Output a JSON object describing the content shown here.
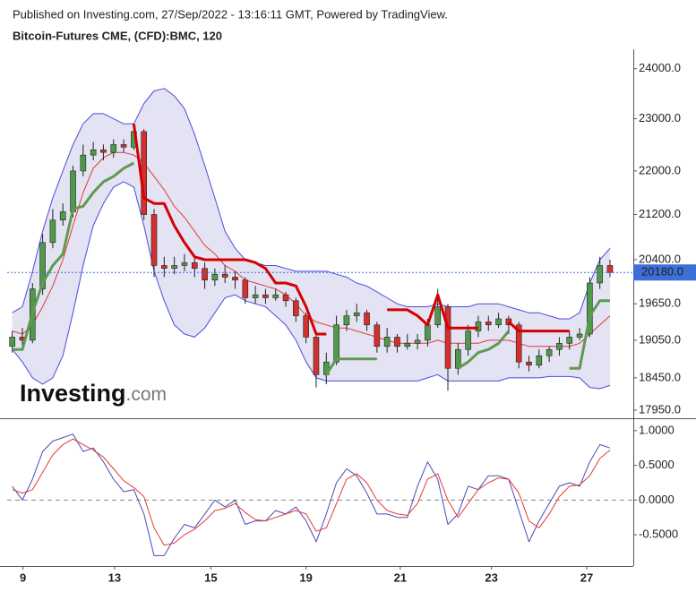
{
  "header": {
    "published": "Published on Investing.com, 27/Sep/2022 - 13:16:11 GMT, Powered by TradingView.",
    "symbol": "Bitcoin-Futures CME, (CFD):BMC, 120"
  },
  "watermark": {
    "brand": "Investing",
    "suffix": ".com"
  },
  "chart_data": [
    {
      "type": "candlestick",
      "log": true,
      "up_color": "#4e9a4a",
      "down_color": "#d32f2f",
      "band_fill": "#e3e3f3",
      "xlim": [
        -0.5,
        61.3
      ],
      "ylim": [
        17840,
        24400
      ],
      "yticks": [
        {
          "value": 24000,
          "label": "24000.0"
        },
        {
          "value": 23000,
          "label": "23000.0"
        },
        {
          "value": 22000,
          "label": "22000.0"
        },
        {
          "value": 21200,
          "label": "21200.0"
        },
        {
          "value": 20400,
          "label": "20400.0"
        },
        {
          "value": 19650,
          "label": "19650.0"
        },
        {
          "value": 19050,
          "label": "19050.0"
        },
        {
          "value": 18450,
          "label": "18450.0"
        },
        {
          "value": 17950,
          "label": "17950.0"
        }
      ],
      "last_price": {
        "value": 20180,
        "label": "20180.0",
        "color": "#3d6fd8"
      },
      "ohlc": [
        [
          18950,
          19200,
          18850,
          19100
        ],
        [
          19100,
          19250,
          18950,
          19050
        ],
        [
          19050,
          20000,
          19000,
          19900
        ],
        [
          19900,
          20850,
          19800,
          20700
        ],
        [
          20700,
          21300,
          20600,
          21100
        ],
        [
          21100,
          21400,
          21000,
          21250
        ],
        [
          21250,
          22100,
          21150,
          22000
        ],
        [
          22000,
          22500,
          21900,
          22300
        ],
        [
          22300,
          22550,
          22200,
          22400
        ],
        [
          22400,
          22500,
          22200,
          22350
        ],
        [
          22350,
          22600,
          22250,
          22500
        ],
        [
          22500,
          22600,
          22350,
          22450
        ],
        [
          22450,
          22900,
          22400,
          22750
        ],
        [
          22750,
          22800,
          21100,
          21200
        ],
        [
          21200,
          21300,
          20100,
          20300
        ],
        [
          20300,
          20450,
          20100,
          20250
        ],
        [
          20250,
          20450,
          20150,
          20300
        ],
        [
          20300,
          20500,
          20200,
          20350
        ],
        [
          20350,
          20450,
          20100,
          20250
        ],
        [
          20250,
          20350,
          19900,
          20050
        ],
        [
          20050,
          20250,
          19950,
          20150
        ],
        [
          20150,
          20300,
          20000,
          20100
        ],
        [
          20100,
          20200,
          19900,
          20050
        ],
        [
          20050,
          20100,
          19650,
          19750
        ],
        [
          19750,
          19950,
          19650,
          19800
        ],
        [
          19800,
          19900,
          19650,
          19750
        ],
        [
          19750,
          19900,
          19700,
          19800
        ],
        [
          19800,
          19850,
          19600,
          19700
        ],
        [
          19700,
          19750,
          19350,
          19450
        ],
        [
          19450,
          19500,
          19000,
          19100
        ],
        [
          19100,
          19150,
          18300,
          18500
        ],
        [
          18500,
          18850,
          18350,
          18700
        ],
        [
          18700,
          19450,
          18650,
          19300
        ],
        [
          19300,
          19550,
          19200,
          19450
        ],
        [
          19450,
          19650,
          19350,
          19500
        ],
        [
          19500,
          19550,
          19200,
          19300
        ],
        [
          19300,
          19350,
          18850,
          18950
        ],
        [
          18950,
          19250,
          18850,
          19100
        ],
        [
          19100,
          19150,
          18850,
          18950
        ],
        [
          18950,
          19150,
          18900,
          19000
        ],
        [
          19000,
          19150,
          18900,
          19050
        ],
        [
          19050,
          19400,
          18950,
          19300
        ],
        [
          19300,
          19900,
          19250,
          19600
        ],
        [
          19600,
          19650,
          18250,
          18600
        ],
        [
          18600,
          19000,
          18500,
          18900
        ],
        [
          18900,
          19300,
          18800,
          19200
        ],
        [
          19200,
          19450,
          19100,
          19350
        ],
        [
          19350,
          19450,
          19200,
          19300
        ],
        [
          19300,
          19500,
          19250,
          19400
        ],
        [
          19400,
          19450,
          19150,
          19300
        ],
        [
          19300,
          19350,
          18600,
          18700
        ],
        [
          18700,
          18800,
          18550,
          18650
        ],
        [
          18650,
          18900,
          18600,
          18800
        ],
        [
          18800,
          18950,
          18700,
          18900
        ],
        [
          18900,
          19100,
          18800,
          19000
        ],
        [
          19000,
          19200,
          18900,
          19100
        ],
        [
          19100,
          19250,
          19050,
          19150
        ],
        [
          19150,
          20100,
          19100,
          20000
        ],
        [
          20000,
          20450,
          19900,
          20300
        ],
        [
          20300,
          20400,
          20100,
          20180
        ]
      ],
      "series": [
        {
          "color": "#4a4ae0",
          "width": 1,
          "values": [
            19500,
            19600,
            20200,
            20900,
            21500,
            22000,
            22500,
            22900,
            23100,
            23100,
            23000,
            22900,
            22900,
            23300,
            23550,
            23600,
            23450,
            23200,
            22700,
            22100,
            21500,
            20900,
            20600,
            20400,
            20350,
            20300,
            20300,
            20250,
            20200,
            20200,
            20200,
            20200,
            20150,
            20100,
            20000,
            19950,
            19850,
            19750,
            19650,
            19600,
            19600,
            19600,
            19650,
            19600,
            19600,
            19600,
            19650,
            19650,
            19650,
            19600,
            19550,
            19500,
            19500,
            19450,
            19400,
            19400,
            19500,
            20000,
            20400,
            20600
          ]
        },
        {
          "color": "#4a4ae0",
          "width": 1,
          "values": [
            18900,
            18700,
            18450,
            18350,
            18450,
            18800,
            19500,
            20300,
            21000,
            21400,
            21700,
            21800,
            21700,
            21000,
            20200,
            19700,
            19300,
            19150,
            19100,
            19250,
            19500,
            19750,
            19800,
            19700,
            19650,
            19600,
            19450,
            19300,
            19050,
            18700,
            18450,
            18400,
            18400,
            18400,
            18400,
            18400,
            18400,
            18400,
            18400,
            18400,
            18400,
            18450,
            18500,
            18400,
            18400,
            18400,
            18400,
            18400,
            18400,
            18450,
            18450,
            18450,
            18450,
            18470,
            18470,
            18470,
            18450,
            18300,
            18280,
            18330
          ]
        },
        {
          "color": "#e53935",
          "width": 1,
          "values": [
            19200,
            19150,
            19300,
            19600,
            19950,
            20400,
            21000,
            21600,
            22050,
            22250,
            22350,
            22350,
            22300,
            22150,
            21900,
            21650,
            21350,
            21150,
            20900,
            20650,
            20500,
            20300,
            20200,
            20050,
            20000,
            19950,
            19900,
            19800,
            19650,
            19450,
            19350,
            19300,
            19250,
            19250,
            19200,
            19150,
            19100,
            19050,
            19000,
            19000,
            19000,
            19000,
            19050,
            19000,
            19000,
            19000,
            19000,
            19050,
            19050,
            19050,
            19000,
            18950,
            18950,
            18950,
            18950,
            18950,
            19000,
            19150,
            19300,
            19450
          ]
        },
        {
          "color": "#d50000",
          "width": 3,
          "values": [
            null,
            null,
            null,
            null,
            null,
            null,
            null,
            null,
            null,
            null,
            null,
            null,
            22900,
            21500,
            21400,
            21400,
            21000,
            20700,
            20450,
            20400,
            20400,
            20400,
            20400,
            20400,
            20350,
            20250,
            20000,
            20000,
            19950,
            19600,
            19150,
            19150,
            null,
            null,
            null,
            null,
            null,
            19550,
            19550,
            19550,
            19450,
            19300,
            19800,
            19250,
            19250,
            19250,
            19250,
            null,
            null,
            19350,
            19200,
            19200,
            19200,
            19200,
            19200,
            19200,
            null,
            null,
            null,
            null
          ]
        },
        {
          "color": "#5e9a50",
          "width": 3,
          "values": [
            18900,
            18900,
            19500,
            20000,
            20300,
            20500,
            21300,
            21350,
            21600,
            21800,
            21900,
            22050,
            22150,
            null,
            null,
            null,
            null,
            null,
            null,
            null,
            null,
            null,
            null,
            null,
            null,
            null,
            null,
            null,
            null,
            null,
            null,
            18500,
            18750,
            18750,
            18750,
            18750,
            18750,
            null,
            null,
            null,
            null,
            null,
            null,
            null,
            18600,
            18700,
            18850,
            18900,
            19000,
            19200,
            null,
            null,
            null,
            null,
            null,
            18600,
            18600,
            19450,
            19700,
            19700
          ]
        }
      ]
    },
    {
      "type": "line",
      "xlim": [
        -0.5,
        61.3
      ],
      "ylim": [
        -0.95,
        1.14
      ],
      "yticks": [
        {
          "value": 1,
          "label": "1.0000"
        },
        {
          "value": 0.5,
          "label": "0.5000"
        },
        {
          "value": 0,
          "label": "0.0000"
        },
        {
          "value": -0.5,
          "label": "-0.5000"
        }
      ],
      "reference_line": 0,
      "xticks": [
        {
          "value": 1.06,
          "label": "9"
        },
        {
          "value": 10.1,
          "label": "13"
        },
        {
          "value": 19.6,
          "label": "15"
        },
        {
          "value": 29.0,
          "label": "19"
        },
        {
          "value": 38.3,
          "label": "21"
        },
        {
          "value": 47.3,
          "label": "23"
        },
        {
          "value": 56.7,
          "label": "27"
        }
      ],
      "series": [
        {
          "color": "#4a4ab8",
          "width": 1,
          "values": [
            0.2,
            0.0,
            0.3,
            0.7,
            0.85,
            0.9,
            0.95,
            0.7,
            0.75,
            0.55,
            0.3,
            0.12,
            0.15,
            -0.2,
            -0.8,
            -0.8,
            -0.55,
            -0.35,
            -0.4,
            -0.2,
            0.0,
            -0.1,
            0.0,
            -0.35,
            -0.3,
            -0.3,
            -0.15,
            -0.2,
            -0.1,
            -0.3,
            -0.6,
            -0.2,
            0.25,
            0.45,
            0.35,
            0.1,
            -0.2,
            -0.2,
            -0.25,
            -0.25,
            0.2,
            0.55,
            0.3,
            -0.35,
            -0.2,
            0.2,
            0.15,
            0.35,
            0.35,
            0.3,
            -0.15,
            -0.6,
            -0.3,
            -0.05,
            0.2,
            0.25,
            0.2,
            0.55,
            0.8,
            0.75
          ]
        },
        {
          "color": "#e53935",
          "width": 1,
          "values": [
            0.15,
            0.1,
            0.15,
            0.4,
            0.65,
            0.8,
            0.88,
            0.8,
            0.72,
            0.62,
            0.45,
            0.28,
            0.18,
            0.05,
            -0.4,
            -0.65,
            -0.62,
            -0.5,
            -0.42,
            -0.3,
            -0.15,
            -0.12,
            -0.05,
            -0.18,
            -0.28,
            -0.3,
            -0.25,
            -0.2,
            -0.15,
            -0.2,
            -0.45,
            -0.4,
            -0.05,
            0.3,
            0.38,
            0.25,
            0.0,
            -0.15,
            -0.2,
            -0.22,
            -0.05,
            0.3,
            0.38,
            0.0,
            -0.25,
            -0.05,
            0.15,
            0.25,
            0.32,
            0.3,
            0.1,
            -0.3,
            -0.4,
            -0.2,
            0.05,
            0.2,
            0.22,
            0.35,
            0.6,
            0.72
          ]
        }
      ]
    }
  ]
}
